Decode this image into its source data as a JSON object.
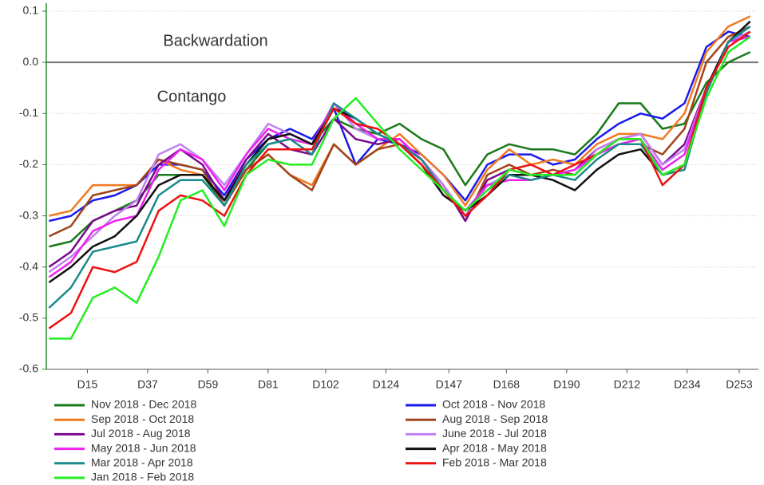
{
  "chart_data": {
    "type": "line",
    "annotations": [
      {
        "text": "Backwardation",
        "color": "#8b1a8b"
      },
      {
        "text": "Contango",
        "color": "#1a1aee"
      }
    ],
    "x": [
      1,
      9,
      17,
      25,
      33,
      41,
      49,
      57,
      65,
      73,
      81,
      89,
      97,
      105,
      113,
      121,
      129,
      137,
      145,
      153,
      161,
      169,
      177,
      185,
      193,
      201,
      209,
      217,
      225,
      233,
      241,
      249,
      257
    ],
    "xlim": [
      0,
      260
    ],
    "xticks": [
      {
        "value": 15,
        "label": "D15"
      },
      {
        "value": 37,
        "label": "D37"
      },
      {
        "value": 59,
        "label": "D59"
      },
      {
        "value": 81,
        "label": "D81"
      },
      {
        "value": 102,
        "label": "D102"
      },
      {
        "value": 124,
        "label": "D124"
      },
      {
        "value": 147,
        "label": "D147"
      },
      {
        "value": 168,
        "label": "D168"
      },
      {
        "value": 190,
        "label": "D190"
      },
      {
        "value": 212,
        "label": "D212"
      },
      {
        "value": 234,
        "label": "D234"
      },
      {
        "value": 253,
        "label": "D253"
      }
    ],
    "ylim": [
      -0.6,
      0.1
    ],
    "yticks": [
      0.1,
      {
        "value": 0,
        "label": "0.0"
      },
      -0.1,
      -0.2,
      -0.3,
      -0.4,
      -0.5,
      -0.6
    ],
    "grid": true,
    "series": [
      {
        "name": "Nov 2018 - Dec 2018",
        "color": "#1a7a1a",
        "values": [
          -0.36,
          -0.35,
          -0.31,
          -0.29,
          -0.27,
          -0.22,
          -0.22,
          -0.22,
          -0.28,
          -0.21,
          -0.16,
          -0.15,
          -0.16,
          -0.11,
          -0.13,
          -0.14,
          -0.12,
          -0.15,
          -0.17,
          -0.24,
          -0.18,
          -0.16,
          -0.17,
          -0.17,
          -0.18,
          -0.14,
          -0.08,
          -0.08,
          -0.13,
          -0.12,
          -0.04,
          0.0,
          0.02
        ]
      },
      {
        "name": "Oct 2018 - Nov 2018",
        "color": "#1a1aee",
        "values": [
          -0.31,
          -0.3,
          -0.27,
          -0.26,
          -0.24,
          -0.2,
          -0.2,
          -0.21,
          -0.26,
          -0.19,
          -0.15,
          -0.13,
          -0.15,
          -0.09,
          -0.2,
          -0.15,
          -0.16,
          -0.18,
          -0.22,
          -0.27,
          -0.2,
          -0.18,
          -0.18,
          -0.2,
          -0.19,
          -0.15,
          -0.12,
          -0.1,
          -0.11,
          -0.08,
          0.03,
          0.06,
          0.05
        ]
      },
      {
        "name": "Sep 2018 - Oct 2018",
        "color": "#f07a20",
        "values": [
          -0.3,
          -0.29,
          -0.24,
          -0.24,
          -0.24,
          -0.19,
          -0.21,
          -0.22,
          -0.27,
          -0.21,
          -0.18,
          -0.22,
          -0.24,
          -0.16,
          -0.2,
          -0.17,
          -0.14,
          -0.18,
          -0.22,
          -0.28,
          -0.21,
          -0.17,
          -0.2,
          -0.19,
          -0.2,
          -0.16,
          -0.14,
          -0.14,
          -0.15,
          -0.1,
          0.02,
          0.07,
          0.09
        ]
      },
      {
        "name": "Aug 2018 - Sep 2018",
        "color": "#a0441a",
        "values": [
          -0.34,
          -0.32,
          -0.26,
          -0.25,
          -0.24,
          -0.19,
          -0.2,
          -0.21,
          -0.28,
          -0.21,
          -0.18,
          -0.22,
          -0.25,
          -0.16,
          -0.2,
          -0.17,
          -0.16,
          -0.19,
          -0.24,
          -0.31,
          -0.22,
          -0.2,
          -0.22,
          -0.21,
          -0.22,
          -0.18,
          -0.16,
          -0.16,
          -0.18,
          -0.13,
          0.0,
          0.05,
          0.07
        ]
      },
      {
        "name": "Jul 2018 - Aug 2018",
        "color": "#7a0a8c",
        "values": [
          -0.4,
          -0.37,
          -0.31,
          -0.29,
          -0.28,
          -0.2,
          -0.17,
          -0.2,
          -0.27,
          -0.19,
          -0.14,
          -0.17,
          -0.18,
          -0.11,
          -0.15,
          -0.16,
          -0.15,
          -0.19,
          -0.24,
          -0.31,
          -0.23,
          -0.21,
          -0.22,
          -0.22,
          -0.21,
          -0.17,
          -0.15,
          -0.14,
          -0.2,
          -0.16,
          -0.05,
          0.04,
          0.06
        ]
      },
      {
        "name": "June 2018 - Jul 2018",
        "color": "#c080f0",
        "values": [
          -0.41,
          -0.38,
          -0.34,
          -0.3,
          -0.27,
          -0.18,
          -0.16,
          -0.19,
          -0.24,
          -0.18,
          -0.12,
          -0.14,
          -0.16,
          -0.08,
          -0.13,
          -0.15,
          -0.15,
          -0.19,
          -0.24,
          -0.3,
          -0.24,
          -0.22,
          -0.22,
          -0.22,
          -0.22,
          -0.17,
          -0.15,
          -0.14,
          -0.2,
          -0.17,
          -0.05,
          0.04,
          0.06
        ]
      },
      {
        "name": "May 2018 - Jun 2018",
        "color": "#ee22ee",
        "values": [
          -0.42,
          -0.39,
          -0.33,
          -0.31,
          -0.3,
          -0.21,
          -0.17,
          -0.19,
          -0.25,
          -0.18,
          -0.13,
          -0.15,
          -0.16,
          -0.08,
          -0.12,
          -0.15,
          -0.15,
          -0.19,
          -0.25,
          -0.29,
          -0.24,
          -0.23,
          -0.23,
          -0.22,
          -0.21,
          -0.18,
          -0.16,
          -0.15,
          -0.21,
          -0.18,
          -0.05,
          0.04,
          0.05
        ]
      },
      {
        "name": "Apr 2018 - May 2018",
        "color": "#111111",
        "values": [
          -0.43,
          -0.4,
          -0.36,
          -0.34,
          -0.3,
          -0.24,
          -0.22,
          -0.22,
          -0.27,
          -0.2,
          -0.15,
          -0.14,
          -0.16,
          -0.09,
          -0.11,
          -0.14,
          -0.16,
          -0.2,
          -0.26,
          -0.29,
          -0.26,
          -0.22,
          -0.22,
          -0.23,
          -0.25,
          -0.21,
          -0.18,
          -0.17,
          -0.22,
          -0.2,
          -0.05,
          0.04,
          0.08
        ]
      },
      {
        "name": "Mar 2018 - Apr 2018",
        "color": "#1a8a8a",
        "values": [
          -0.48,
          -0.44,
          -0.37,
          -0.36,
          -0.35,
          -0.26,
          -0.23,
          -0.23,
          -0.28,
          -0.2,
          -0.16,
          -0.15,
          -0.18,
          -0.08,
          -0.11,
          -0.14,
          -0.16,
          -0.19,
          -0.25,
          -0.29,
          -0.25,
          -0.22,
          -0.23,
          -0.22,
          -0.23,
          -0.19,
          -0.16,
          -0.16,
          -0.22,
          -0.21,
          -0.06,
          0.04,
          0.07
        ]
      },
      {
        "name": "Feb 2018 - Mar 2018",
        "color": "#ee1111",
        "values": [
          -0.52,
          -0.49,
          -0.4,
          -0.41,
          -0.39,
          -0.29,
          -0.26,
          -0.27,
          -0.3,
          -0.22,
          -0.17,
          -0.17,
          -0.17,
          -0.09,
          -0.12,
          -0.13,
          -0.16,
          -0.2,
          -0.25,
          -0.3,
          -0.26,
          -0.21,
          -0.2,
          -0.22,
          -0.2,
          -0.18,
          -0.15,
          -0.15,
          -0.24,
          -0.2,
          -0.05,
          0.03,
          0.06
        ]
      },
      {
        "name": "Jan 2018 - Feb 2018",
        "color": "#22ee22",
        "values": [
          -0.54,
          -0.54,
          -0.46,
          -0.44,
          -0.47,
          -0.38,
          -0.27,
          -0.25,
          -0.32,
          -0.22,
          -0.19,
          -0.2,
          -0.2,
          -0.11,
          -0.07,
          -0.12,
          -0.17,
          -0.21,
          -0.25,
          -0.29,
          -0.25,
          -0.21,
          -0.22,
          -0.22,
          -0.22,
          -0.18,
          -0.15,
          -0.15,
          -0.22,
          -0.2,
          -0.07,
          0.02,
          0.05
        ]
      }
    ]
  }
}
